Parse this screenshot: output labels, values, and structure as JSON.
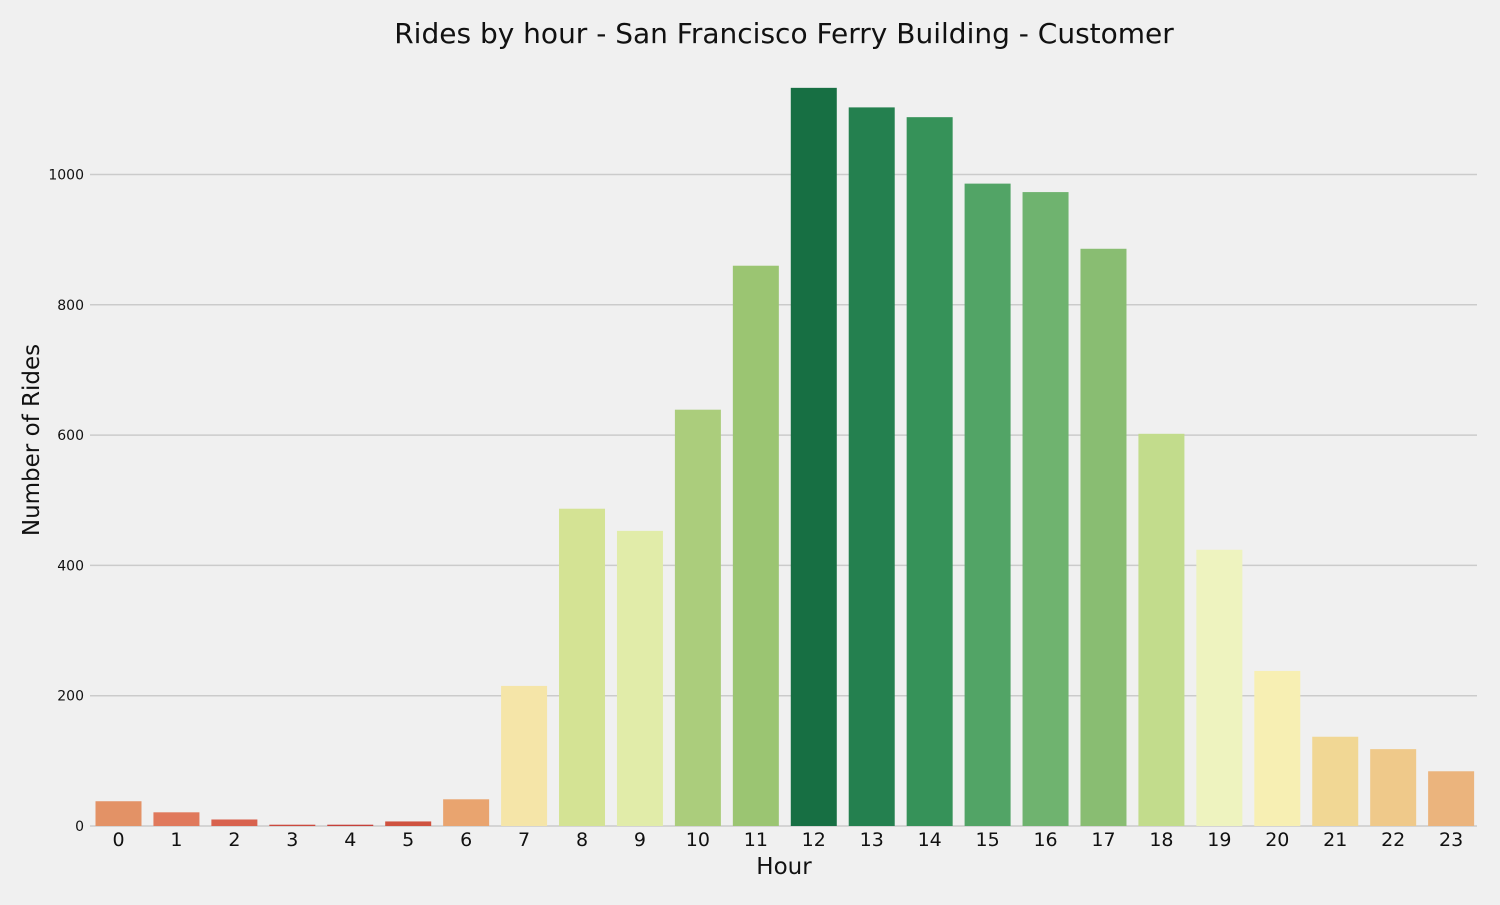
{
  "chart_data": {
    "type": "bar",
    "title": "Rides by hour - San Francisco Ferry Building - Customer",
    "xlabel": "Hour",
    "ylabel": "Number of Rides",
    "categories": [
      "0",
      "1",
      "2",
      "3",
      "4",
      "5",
      "6",
      "7",
      "8",
      "9",
      "10",
      "11",
      "12",
      "13",
      "14",
      "15",
      "16",
      "17",
      "18",
      "19",
      "20",
      "21",
      "22",
      "23"
    ],
    "values": [
      38,
      21,
      10,
      2,
      2,
      7,
      41,
      215,
      487,
      453,
      639,
      860,
      1133,
      1103,
      1088,
      986,
      973,
      886,
      602,
      424,
      238,
      137,
      118,
      84
    ],
    "colors": [
      "#e39266",
      "#e0795c",
      "#d8624e",
      "#cc4a3e",
      "#c6413a",
      "#cf523f",
      "#e9a46f",
      "#f5e5a8",
      "#d4e394",
      "#e1eca9",
      "#abcd7c",
      "#9bc572",
      "#176f43",
      "#24804f",
      "#369259",
      "#52a466",
      "#6fb36f",
      "#89bd72",
      "#c2dc8c",
      "#eef3bf",
      "#f7efb3",
      "#f1d794",
      "#efc98a",
      "#ebb47d"
    ],
    "yticks": [
      0,
      200,
      400,
      600,
      800,
      1000
    ],
    "ylim": [
      0,
      1160
    ],
    "grid": true
  }
}
